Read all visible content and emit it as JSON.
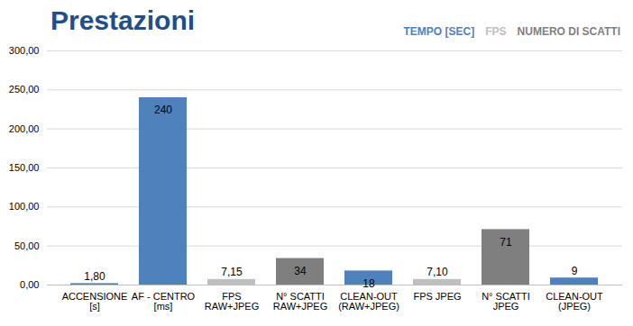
{
  "chart_data": {
    "type": "bar",
    "title": "Prestazioni",
    "categories": [
      "ACCENSIONE\n[s]",
      "AF - CENTRO\n[ms]",
      "FPS\nRAW+JPEG",
      "N° SCATTI\nRAW+JPEG",
      "CLEAN-OUT\n(RAW+JPEG)",
      "FPS JPEG",
      "N° SCATTI\nJPEG",
      "CLEAN-OUT\n(JPEG)"
    ],
    "series": [
      {
        "name": "TEMPO [SEC]",
        "color": "#4f81bd",
        "values": [
          1.8,
          240,
          null,
          null,
          18,
          null,
          null,
          9
        ],
        "value_labels": [
          "1,80",
          "240",
          null,
          null,
          "18",
          null,
          null,
          "9"
        ]
      },
      {
        "name": "FPS",
        "color": "#bfbfbf",
        "values": [
          null,
          null,
          7.15,
          null,
          null,
          7.1,
          null,
          null
        ],
        "value_labels": [
          null,
          null,
          "7,15",
          null,
          null,
          "7,10",
          null,
          null
        ]
      },
      {
        "name": "NUMERO DI SCATTI",
        "color": "#7f7f7f",
        "values": [
          null,
          null,
          null,
          34,
          null,
          null,
          71,
          null
        ],
        "value_labels": [
          null,
          null,
          null,
          "34",
          null,
          null,
          "71",
          null
        ]
      }
    ],
    "ylim": [
      0,
      300
    ],
    "yticks": [
      {
        "value": 0,
        "label": "0,00"
      },
      {
        "value": 50,
        "label": "50,00"
      },
      {
        "value": 100,
        "label": "100,00"
      },
      {
        "value": 150,
        "label": "150,00"
      },
      {
        "value": 200,
        "label": "200,00"
      },
      {
        "value": 250,
        "label": "250,00"
      },
      {
        "value": 300,
        "label": "300,00"
      }
    ],
    "grid": true,
    "legend": "top-right",
    "data_labels": true
  }
}
